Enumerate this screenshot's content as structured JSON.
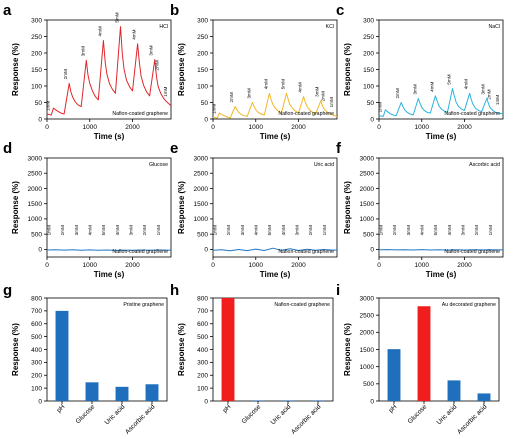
{
  "chart_data": [
    {
      "panel": "a",
      "type": "line",
      "title": "HCl",
      "footnote": "Nafion-coated graphene",
      "xlabel": "Time (s)",
      "ylabel": "Response (%)",
      "xlim": [
        0,
        2900
      ],
      "ylim": [
        0,
        300
      ],
      "xticks": [
        "0",
        "1000",
        "2000"
      ],
      "yticks": [
        "0",
        "50",
        "100",
        "150",
        "200",
        "250",
        "300"
      ],
      "color": "#e0262c",
      "concentration_labels": [
        "1mM",
        "2mM",
        "3mM",
        "4mM",
        "5mM",
        "4mM",
        "3mM",
        "2mM",
        "1mM"
      ],
      "series": [
        {
          "x": [
            0,
            100,
            150,
            200,
            260,
            330,
            400,
            520,
            560,
            600,
            660,
            730,
            800,
            920,
            960,
            1000,
            1060,
            1130,
            1200,
            1320,
            1360,
            1400,
            1460,
            1530,
            1600,
            1720,
            1760,
            1800,
            1860,
            1930,
            2000,
            2120,
            2160,
            2200,
            2260,
            2330,
            2400,
            2520,
            2560,
            2600,
            2660,
            2730,
            2800,
            2900
          ],
          "y": [
            15,
            12,
            33,
            28,
            23,
            18,
            15,
            108,
            82,
            66,
            52,
            42,
            38,
            178,
            133,
            108,
            86,
            68,
            58,
            238,
            172,
            136,
            108,
            90,
            78,
            280,
            198,
            152,
            118,
            98,
            85,
            228,
            170,
            130,
            102,
            82,
            70,
            180,
            128,
            98,
            78,
            62,
            52,
            40
          ]
        }
      ]
    },
    {
      "panel": "b",
      "type": "line",
      "title": "KCl",
      "footnote": "Nafion-coated graphene",
      "xlabel": "Time (s)",
      "ylabel": "Response (%)",
      "xlim": [
        0,
        2900
      ],
      "ylim": [
        0,
        300
      ],
      "xticks": [
        "0",
        "1000",
        "2000"
      ],
      "yticks": [
        "0",
        "50",
        "100",
        "150",
        "200",
        "250",
        "300"
      ],
      "color": "#f2b724",
      "concentration_labels": [
        "1mM",
        "2mM",
        "3mM",
        "4mM",
        "5mM",
        "4mM",
        "3mM",
        "2mM",
        "1mM"
      ],
      "series": [
        {
          "x": [
            0,
            100,
            150,
            200,
            260,
            330,
            400,
            520,
            560,
            600,
            660,
            730,
            800,
            920,
            960,
            1000,
            1060,
            1130,
            1200,
            1320,
            1360,
            1400,
            1460,
            1530,
            1600,
            1720,
            1760,
            1800,
            1860,
            1930,
            2000,
            2120,
            2160,
            2200,
            2260,
            2330,
            2400,
            2520,
            2560,
            2600,
            2660,
            2730,
            2800,
            2900
          ],
          "y": [
            5,
            3,
            18,
            14,
            10,
            6,
            3,
            38,
            28,
            20,
            14,
            10,
            8,
            50,
            38,
            28,
            20,
            15,
            12,
            78,
            58,
            44,
            32,
            24,
            18,
            78,
            58,
            43,
            32,
            24,
            18,
            68,
            50,
            38,
            28,
            20,
            15,
            55,
            40,
            30,
            22,
            16,
            12,
            8
          ]
        }
      ]
    },
    {
      "panel": "c",
      "type": "line",
      "title": "NaCl",
      "footnote": "Nafion-coated graphene",
      "xlabel": "Time (s)",
      "ylabel": "Response (%)",
      "xlim": [
        0,
        2900
      ],
      "ylim": [
        0,
        300
      ],
      "xticks": [
        "0",
        "1000",
        "2000"
      ],
      "yticks": [
        "0",
        "50",
        "100",
        "150",
        "200",
        "250",
        "300"
      ],
      "color": "#2bb3de",
      "concentration_labels": [
        "1mM",
        "2mM",
        "3mM",
        "4mM",
        "5mM",
        "4mM",
        "3mM",
        "2mM",
        "1mM"
      ],
      "series": [
        {
          "x": [
            0,
            100,
            150,
            200,
            260,
            330,
            400,
            520,
            560,
            600,
            660,
            730,
            800,
            920,
            960,
            1000,
            1060,
            1130,
            1200,
            1320,
            1360,
            1400,
            1460,
            1530,
            1600,
            1720,
            1760,
            1800,
            1860,
            1930,
            2000,
            2120,
            2160,
            2200,
            2260,
            2330,
            2400,
            2520,
            2560,
            2600,
            2660,
            2730,
            2800,
            2900
          ],
          "y": [
            10,
            8,
            28,
            22,
            16,
            12,
            10,
            50,
            38,
            28,
            20,
            15,
            12,
            62,
            48,
            35,
            26,
            20,
            18,
            70,
            54,
            40,
            30,
            24,
            20,
            92,
            70,
            52,
            38,
            30,
            26,
            78,
            58,
            44,
            32,
            26,
            22,
            62,
            46,
            34,
            26,
            20,
            18,
            15
          ]
        }
      ]
    },
    {
      "panel": "d",
      "type": "line",
      "title": "Glucose",
      "footnote": "Nafion-coated graphene",
      "xlabel": "Time (s)",
      "ylabel": "Response (%)",
      "xlim": [
        0,
        2900
      ],
      "ylim": [
        -250,
        3000
      ],
      "xticks": [
        "0",
        "1000",
        "2000"
      ],
      "yticks": [
        "0",
        "500",
        "1000",
        "1500",
        "2000",
        "2500",
        "3000"
      ],
      "color": "#1f77c4",
      "concentration_labels": [
        "1mM",
        "2mM",
        "3mM",
        "4mM",
        "5mM",
        "4mM",
        "3mM",
        "2mM",
        "1mM"
      ],
      "series": [
        {
          "x": [
            0,
            200,
            400,
            600,
            800,
            1000,
            1200,
            1400,
            1600,
            1800,
            2000,
            2200,
            2400,
            2600,
            2800,
            2900
          ],
          "y": [
            -20,
            -12,
            -25,
            -15,
            -28,
            -18,
            -30,
            -20,
            -32,
            -22,
            -30,
            -20,
            -28,
            -18,
            -25,
            -22
          ]
        }
      ]
    },
    {
      "panel": "e",
      "type": "line",
      "title": "Uric acid",
      "footnote": "Nafion-coated graphene",
      "xlabel": "Time (s)",
      "ylabel": "Response (%)",
      "xlim": [
        0,
        2900
      ],
      "ylim": [
        -250,
        3000
      ],
      "xticks": [
        "0",
        "1000",
        "2000"
      ],
      "yticks": [
        "0",
        "500",
        "1000",
        "1500",
        "2000",
        "2500",
        "3000"
      ],
      "color": "#1f77c4",
      "concentration_labels": [
        "1mM",
        "2mM",
        "3mM",
        "4mM",
        "5mM",
        "4mM",
        "3mM",
        "2mM",
        "1mM"
      ],
      "series": [
        {
          "x": [
            0,
            200,
            400,
            600,
            800,
            1000,
            1200,
            1400,
            1600,
            1800,
            2000,
            2200,
            2400,
            2600,
            2800,
            2900
          ],
          "y": [
            -30,
            -10,
            -45,
            -5,
            -40,
            10,
            -35,
            40,
            -30,
            20,
            -35,
            5,
            -30,
            -5,
            -25,
            -20
          ]
        }
      ]
    },
    {
      "panel": "f",
      "type": "line",
      "title": "Ascorbic acid",
      "footnote": "Nafion-coated graphene",
      "xlabel": "Time (s)",
      "ylabel": "Response (%)",
      "xlim": [
        0,
        2900
      ],
      "ylim": [
        -250,
        3000
      ],
      "xticks": [
        "0",
        "1000",
        "2000"
      ],
      "yticks": [
        "0",
        "500",
        "1000",
        "1500",
        "2000",
        "2500",
        "3000"
      ],
      "color": "#1f77c4",
      "concentration_labels": [
        "1mM",
        "2mM",
        "3mM",
        "4mM",
        "5mM",
        "4mM",
        "3mM",
        "2mM",
        "1mM"
      ],
      "series": [
        {
          "x": [
            0,
            200,
            400,
            600,
            800,
            1000,
            1200,
            1400,
            1600,
            1800,
            2000,
            2200,
            2400,
            2600,
            2800,
            2900
          ],
          "y": [
            -15,
            -8,
            -18,
            -10,
            -20,
            -8,
            -20,
            -10,
            -22,
            -12,
            -20,
            -10,
            -18,
            -10,
            -16,
            -14
          ]
        }
      ]
    },
    {
      "panel": "g",
      "type": "bar",
      "title": "Pristine graphene",
      "ylabel": "Response (%)",
      "ylim": [
        0,
        800
      ],
      "yticks": [
        "0",
        "100",
        "200",
        "300",
        "400",
        "500",
        "600",
        "700",
        "800"
      ],
      "categories": [
        "pH",
        "Glucose",
        "Uric acid",
        "Ascorbic acid"
      ],
      "values": [
        700,
        145,
        110,
        130
      ],
      "colors": [
        "#1f6fbd",
        "#1f6fbd",
        "#1f6fbd",
        "#1f6fbd"
      ]
    },
    {
      "panel": "h",
      "type": "bar",
      "title": "Nafion-coated graphene",
      "ylabel": "Response (%)",
      "ylim": [
        0,
        800
      ],
      "yticks": [
        "0",
        "100",
        "200",
        "300",
        "400",
        "500",
        "600",
        "700",
        "800"
      ],
      "categories": [
        "pH",
        "Glucose",
        "Uric acid",
        "Ascorbic acid"
      ],
      "values": [
        800,
        2,
        2,
        3
      ],
      "colors": [
        "#f21e1e",
        "#1f6fbd",
        "#1f6fbd",
        "#1f6fbd"
      ]
    },
    {
      "panel": "i",
      "type": "bar",
      "title": "Au decorated graphene",
      "ylabel": "Response (%)",
      "ylim": [
        0,
        3000
      ],
      "yticks": [
        "0",
        "500",
        "1000",
        "1500",
        "2000",
        "2500",
        "3000"
      ],
      "categories": [
        "pH",
        "Glucose",
        "Uric acid",
        "Ascorbic acid"
      ],
      "values": [
        1510,
        2760,
        600,
        220
      ],
      "colors": [
        "#1f6fbd",
        "#f21e1e",
        "#1f6fbd",
        "#1f6fbd"
      ]
    }
  ]
}
